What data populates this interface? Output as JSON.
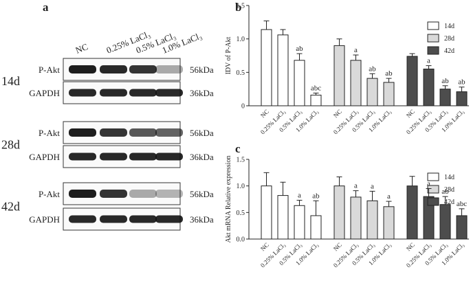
{
  "panel_a": {
    "letter": "a",
    "lanes": [
      "NC",
      "0.25% LaCl₃",
      "0.5% LaCl₃",
      "1.0% LaCl₃"
    ],
    "timepoints": [
      "14d",
      "28d",
      "42d"
    ],
    "proteins": [
      {
        "name": "P-Akt",
        "size": "56kDa"
      },
      {
        "name": "GAPDH",
        "size": "36kDa"
      }
    ]
  },
  "chart_data": [
    {
      "type": "bar",
      "title": "b",
      "ylabel": "IDV of P-Akt",
      "categories": [
        "NC",
        "0.25% LaCl₃",
        "0.5% LaCl₃",
        "1.0% LaCl₃"
      ],
      "ylim": [
        0,
        1.5
      ],
      "yticks": [
        0,
        0.5,
        {
          "value": 1,
          "label": "1.0"
        },
        1.5
      ],
      "series": [
        {
          "name": "14d",
          "color": "#ffffff",
          "values": [
            1.14,
            1.06,
            0.68,
            0.16
          ],
          "errors": [
            0.13,
            0.08,
            0.1,
            0.03
          ],
          "annotations": [
            null,
            null,
            "ab",
            "abc"
          ]
        },
        {
          "name": "28d",
          "color": "#d9d9d9",
          "values": [
            0.9,
            0.68,
            0.41,
            0.35
          ],
          "errors": [
            0.1,
            0.08,
            0.07,
            0.06
          ],
          "annotations": [
            null,
            "a",
            "ab",
            "ab"
          ]
        },
        {
          "name": "42d",
          "color": "#4d4d4d",
          "values": [
            0.74,
            0.55,
            0.25,
            0.21
          ],
          "errors": [
            0.04,
            0.05,
            0.05,
            0.07
          ],
          "annotations": [
            null,
            "a",
            "ab",
            "ab"
          ]
        }
      ]
    },
    {
      "type": "bar",
      "title": "c",
      "ylabel": "Akt mRNA Relative expression",
      "categories": [
        "NC",
        "0.25% LaCl₃",
        "0.5% LaCl₃",
        "1.0% LaCl₃"
      ],
      "ylim": [
        0,
        1.5
      ],
      "yticks": [
        {
          "value": 0,
          "label": "0.0"
        },
        0.5,
        {
          "value": 1,
          "label": "1.0"
        },
        1.5
      ],
      "series": [
        {
          "name": "14d",
          "color": "#ffffff",
          "values": [
            1.0,
            0.82,
            0.63,
            0.44
          ],
          "errors": [
            0.25,
            0.25,
            0.1,
            0.28
          ],
          "annotations": [
            null,
            null,
            "a",
            "ab"
          ]
        },
        {
          "name": "28d",
          "color": "#d9d9d9",
          "values": [
            1.0,
            0.79,
            0.72,
            0.61
          ],
          "errors": [
            0.17,
            0.12,
            0.18,
            0.1
          ],
          "annotations": [
            null,
            "a",
            "a",
            "a"
          ]
        },
        {
          "name": "42d",
          "color": "#4d4d4d",
          "values": [
            1.0,
            0.8,
            0.65,
            0.44
          ],
          "errors": [
            0.18,
            0.15,
            0.15,
            0.13
          ],
          "annotations": [
            null,
            "a",
            "ab",
            "abc"
          ]
        }
      ]
    }
  ]
}
